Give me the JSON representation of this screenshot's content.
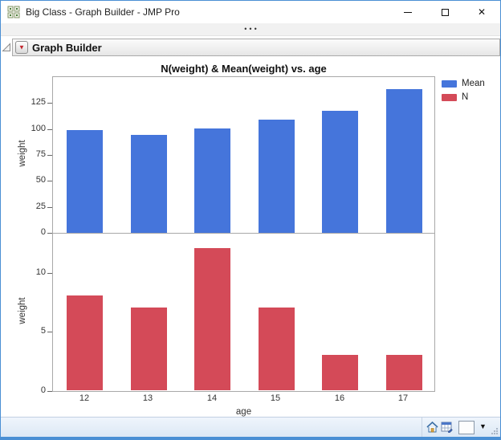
{
  "window": {
    "title": "Big Class - Graph Builder - JMP Pro",
    "icons": {
      "close": "✕",
      "overflow_dots": "•••"
    }
  },
  "outline": {
    "title": "Graph Builder",
    "menu_icon": "▼"
  },
  "chart_data": {
    "type": "bar",
    "title": "N(weight) & Mean(weight) vs. age",
    "categories": [
      "12",
      "13",
      "14",
      "15",
      "16",
      "17"
    ],
    "xlabel": "age",
    "grid": false,
    "legend_position": "right-top",
    "panels": [
      {
        "series": "Mean",
        "ylabel": "weight",
        "color": "#4575DB",
        "values": [
          99,
          94.7,
          100.2,
          108.9,
          117.7,
          138.3
        ],
        "ylim": [
          0,
          150
        ],
        "yticks": [
          0,
          25,
          50,
          75,
          100,
          125
        ]
      },
      {
        "series": "N",
        "ylabel": "weight",
        "color": "#D44A58",
        "values": [
          8,
          7,
          12,
          7,
          3,
          3
        ],
        "ylim": [
          0,
          13.3
        ],
        "yticks": [
          0,
          5,
          10
        ]
      }
    ],
    "legend": [
      {
        "label": "Mean",
        "color": "#4575DB"
      },
      {
        "label": "N",
        "color": "#D44A58"
      }
    ]
  },
  "statusbar": {
    "dropdown_icon": "▼"
  }
}
